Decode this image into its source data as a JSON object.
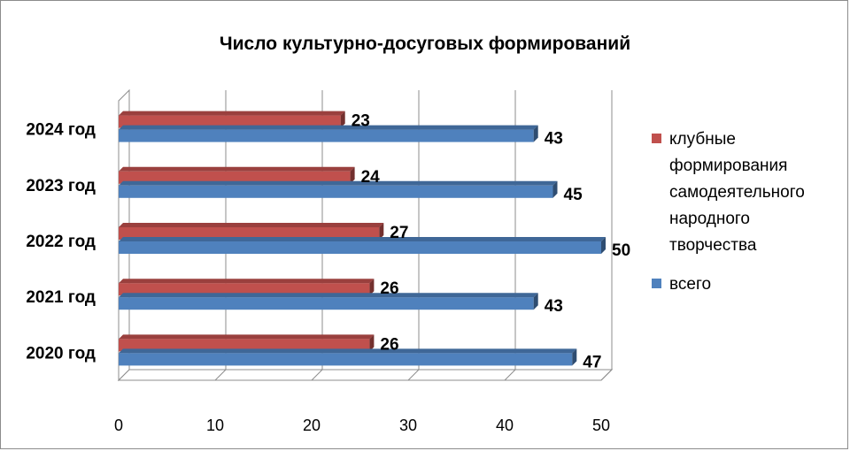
{
  "chart_data": {
    "type": "bar",
    "orientation": "horizontal",
    "title": "Число культурно-досуговых формирований",
    "categories": [
      "2020 год",
      "2021 год",
      "2022 год",
      "2023 год",
      "2024 год"
    ],
    "series": [
      {
        "name": "клубные формирования самодеятельного народного творчества",
        "color": "#c0504d",
        "values": [
          26,
          26,
          27,
          24,
          23
        ]
      },
      {
        "name": "всего",
        "color": "#4f81bd",
        "values": [
          47,
          43,
          50,
          45,
          43
        ]
      }
    ],
    "xlim": [
      0,
      50
    ],
    "xticks": [
      0,
      10,
      20,
      30,
      40,
      50
    ],
    "grid": true,
    "legend_position": "right"
  }
}
